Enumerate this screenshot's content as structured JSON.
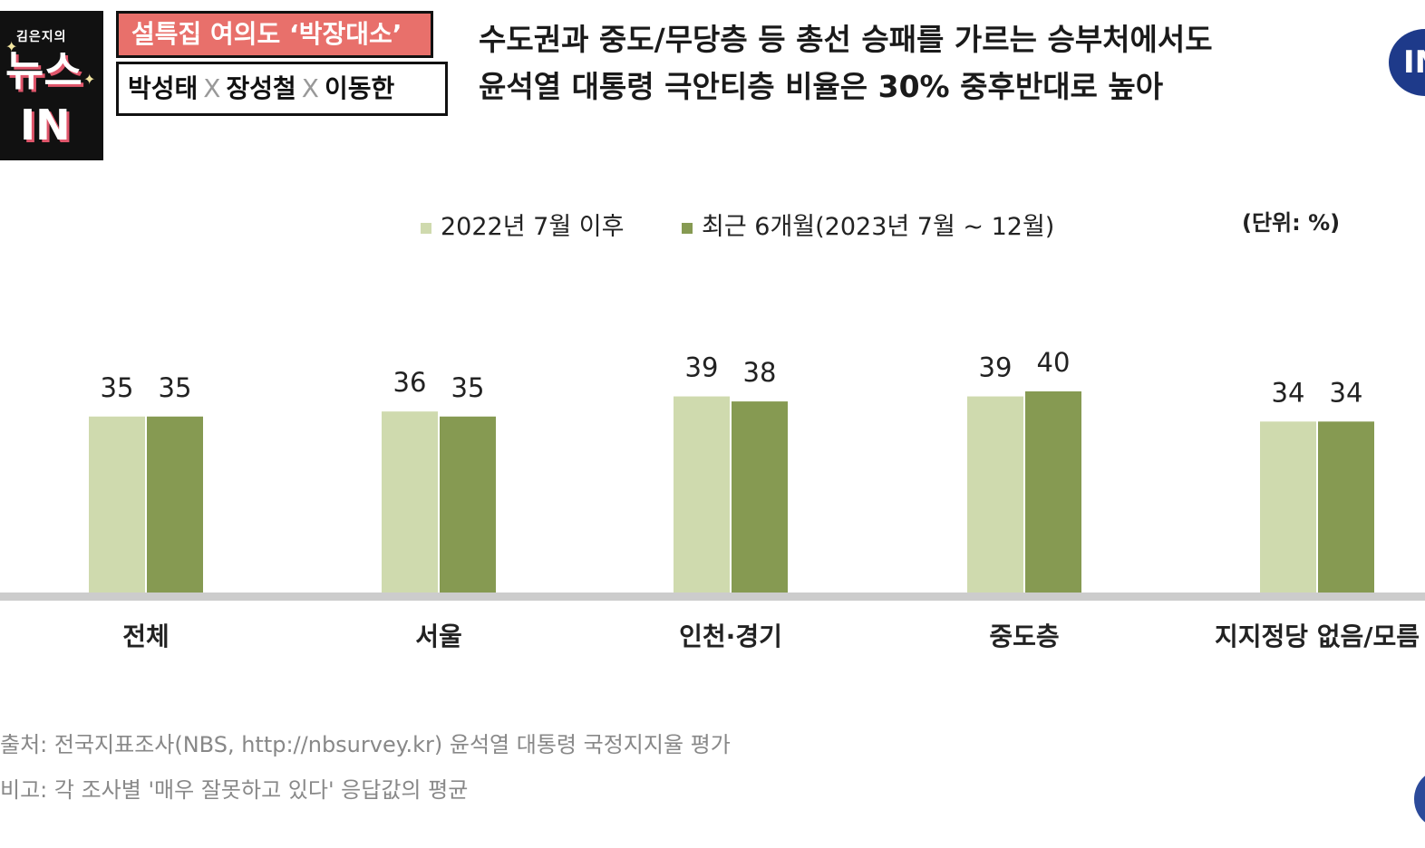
{
  "show_badge": {
    "logo_small": "김은지의",
    "logo_big": "뉴스\n IN",
    "title": "설특집 여의도 ‘박장대소’",
    "guest1": "박성태",
    "sep1": "X",
    "guest2": "장성철",
    "sep2": "X",
    "guest3": "이동한"
  },
  "headline": {
    "line1": "수도권과 중도/무당층 등 총선 승패를 가르는 승부처에서도",
    "line2": "윤석열 대통령 극안티층 비율은 30% 중후반대로 높아"
  },
  "colors": {
    "series1": "#cfdaae",
    "series2": "#869a52",
    "baseline": "#cccccc",
    "badge_red": "#e8706b"
  },
  "chart_data": {
    "type": "bar",
    "categories": [
      "전체",
      "서울",
      "인천·경기",
      "중도층",
      "지지정당 없음/모름"
    ],
    "series": [
      {
        "name": "2022년 7월 이후",
        "values": [
          35,
          36,
          39,
          39,
          34
        ]
      },
      {
        "name": "최근 6개월(2023년 7월 ~ 12월)",
        "values": [
          35,
          35,
          38,
          40,
          34
        ]
      }
    ],
    "unit_label": "(단위: %)",
    "ylim": [
      0,
      40
    ],
    "grid": false,
    "legend_position": "top",
    "data_labels": true
  },
  "footnotes": {
    "source": "출처: 전국지표조사(NBS, http://nbsurvey.kr) 윤석열 대통령 국정지지율 평가",
    "note": "비고: 각 조사별 '매우 잘못하고 있다' 응답값의 평균"
  }
}
